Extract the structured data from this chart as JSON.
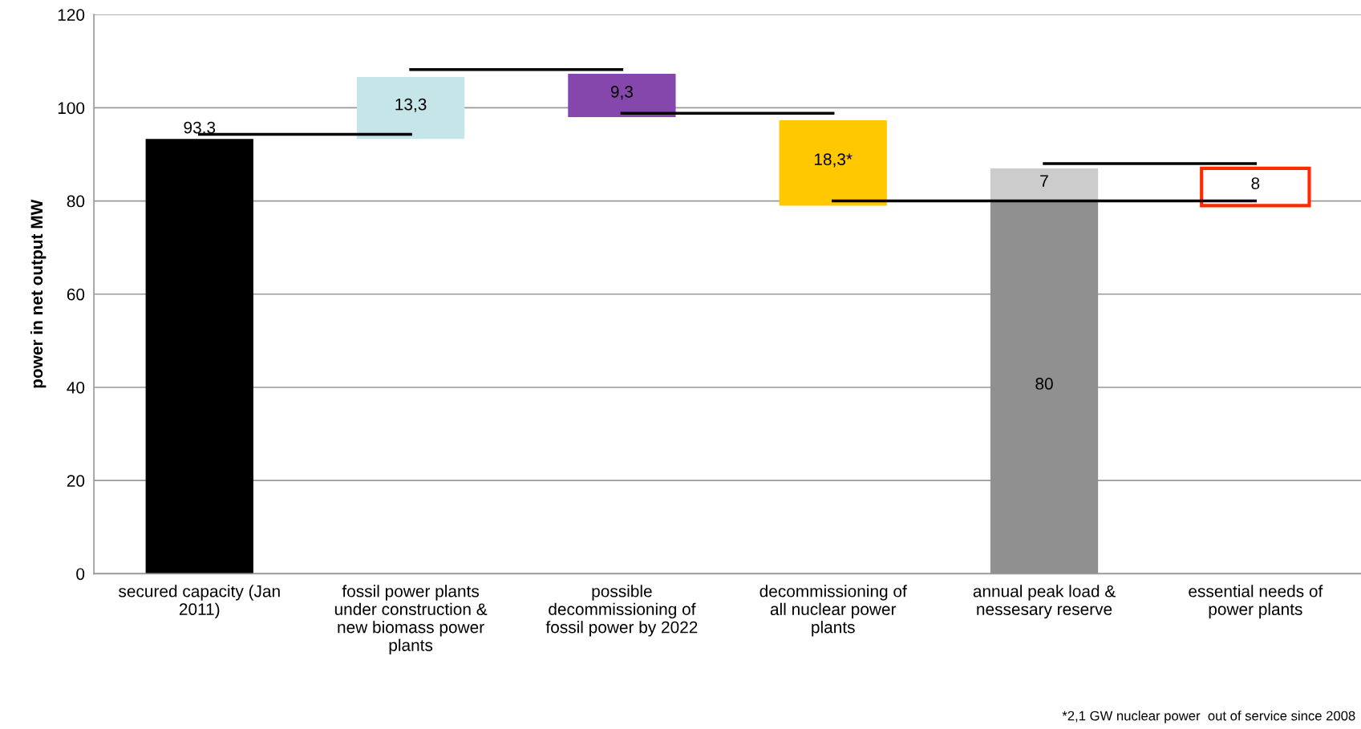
{
  "chart_data": {
    "type": "bar",
    "ylabel": "power in net output MW",
    "categories": [
      "secured capacity (Jan\n2011)",
      "fossil power plants\nunder construction &\nnew biomass power\nplants",
      "possible\ndecommissioning of\nfossil power by 2022",
      "decommissioning of\nall nuclear power\nplants",
      "annual peak load &\nnessesary reserve",
      "essential needs of\npower plants"
    ],
    "series": [
      {
        "colors": [
          "#000000",
          "#c5e5e8",
          "#8647ad",
          "#ffc800",
          "#909090",
          null
        ],
        "values": [
          93.3,
          13.3,
          9.3,
          18.3,
          80,
          null
        ],
        "base": [
          0,
          93.3,
          98,
          79,
          0,
          null
        ],
        "value_labels": [
          "93,3",
          "13,3",
          "9,3",
          "18,3*",
          "80",
          null
        ]
      },
      {
        "color": "#cccccc",
        "values": [
          null,
          null,
          null,
          null,
          7,
          null
        ],
        "base": [
          null,
          null,
          null,
          null,
          80,
          null
        ],
        "value_labels": [
          null,
          null,
          null,
          null,
          "7",
          null
        ]
      },
      {
        "color": "#ff2a00",
        "colors": [
          null,
          null,
          null,
          null,
          null,
          "#ffffff"
        ],
        "values": [
          null,
          null,
          null,
          null,
          null,
          8
        ],
        "base": [
          null,
          null,
          null,
          null,
          null,
          79
        ],
        "value_labels": [
          null,
          null,
          null,
          null,
          null,
          "8"
        ]
      },
      {
        "type": "line",
        "color": "#000000",
        "values": [
          94.3,
          94.3,
          null,
          null,
          null,
          null
        ]
      },
      {
        "type": "line",
        "color": "#000000",
        "values": [
          null,
          108.2,
          108.2,
          null,
          null,
          null
        ]
      },
      {
        "type": "line",
        "color": "#000000",
        "values": [
          null,
          null,
          98.8,
          98.8,
          null,
          null
        ]
      },
      {
        "type": "line",
        "color": "#000000",
        "values": [
          null,
          null,
          null,
          80,
          80,
          80
        ]
      },
      {
        "type": "line",
        "color": "#000000",
        "values": [
          null,
          null,
          null,
          null,
          88,
          88
        ]
      }
    ],
    "ylim": [
      0,
      120
    ],
    "yticks": [
      0,
      20,
      40,
      60,
      80,
      100,
      120
    ],
    "grid": "y",
    "legend": false,
    "annotations": [
      "*2,1 GW nuclear power  out of service since 2008"
    ]
  }
}
